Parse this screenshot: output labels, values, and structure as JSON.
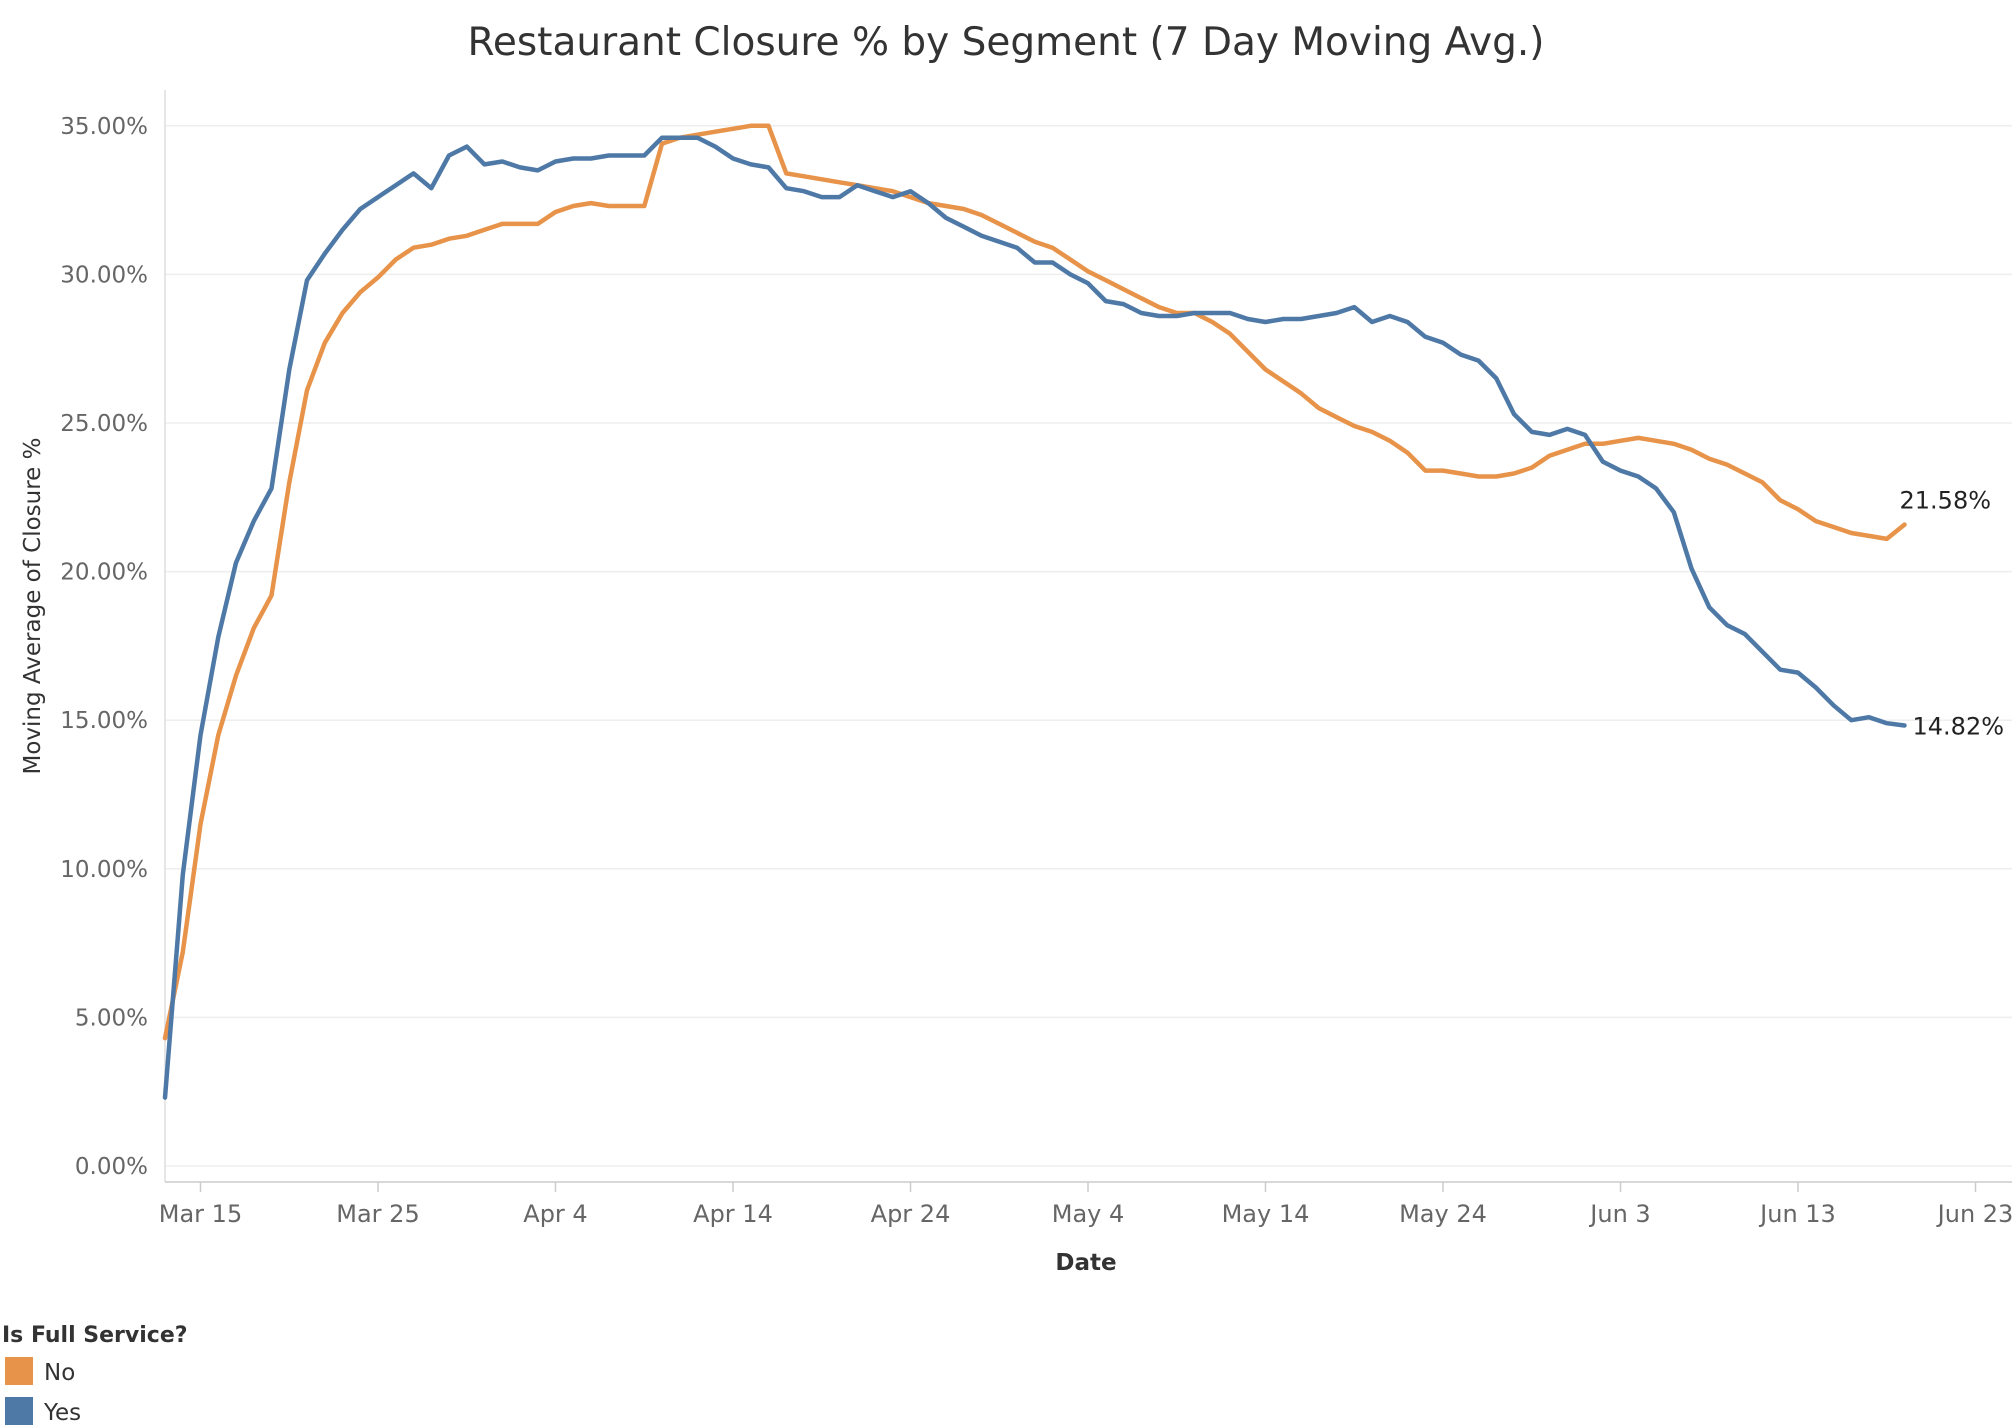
{
  "chart_data": {
    "type": "line",
    "title": "Restaurant Closure % by Segment (7 Day Moving Avg.)",
    "xlabel": "Date",
    "ylabel": "Moving Average of Closure %",
    "x_start_label": "Mar 13",
    "x_ticks": [
      "Mar 15",
      "Mar 25",
      "Apr 4",
      "Apr 14",
      "Apr 24",
      "May 4",
      "May 14",
      "May 24",
      "Jun 3",
      "Jun 13",
      "Jun 23"
    ],
    "x_tick_day_index": [
      2,
      12,
      22,
      32,
      42,
      52,
      62,
      72,
      82,
      92,
      102
    ],
    "x_range_day_index": [
      0,
      104.5
    ],
    "y_ticks": [
      "0.00%",
      "5.00%",
      "10.00%",
      "15.00%",
      "20.00%",
      "25.00%",
      "30.00%",
      "35.00%"
    ],
    "y_tick_values": [
      0,
      5,
      10,
      15,
      20,
      25,
      30,
      35
    ],
    "ylim": [
      0,
      37
    ],
    "grid": true,
    "legend": {
      "title": "Is Full Service?",
      "placement": "bottom-left"
    },
    "series": [
      {
        "name": "No",
        "color": "#E8934A",
        "end_label": "21.58%",
        "values": [
          4.3,
          7.2,
          11.5,
          14.5,
          16.5,
          18.1,
          19.2,
          23.0,
          26.1,
          27.7,
          28.7,
          29.4,
          29.9,
          30.5,
          30.9,
          31.0,
          31.2,
          31.3,
          31.5,
          31.7,
          31.7,
          31.7,
          32.1,
          32.3,
          32.4,
          32.3,
          32.3,
          32.3,
          34.4,
          34.6,
          34.7,
          34.8,
          34.9,
          35.0,
          35.0,
          33.4,
          33.3,
          33.2,
          33.1,
          33.0,
          32.9,
          32.8,
          32.6,
          32.4,
          32.3,
          32.2,
          32.0,
          31.7,
          31.4,
          31.1,
          30.9,
          30.5,
          30.1,
          29.8,
          29.5,
          29.2,
          28.9,
          28.7,
          28.7,
          28.4,
          28.0,
          27.4,
          26.8,
          26.4,
          26.0,
          25.5,
          25.2,
          24.9,
          24.7,
          24.4,
          24.0,
          23.4,
          23.4,
          23.3,
          23.2,
          23.2,
          23.3,
          23.5,
          23.9,
          24.1,
          24.3,
          24.3,
          24.4,
          24.5,
          24.4,
          24.3,
          24.1,
          23.8,
          23.6,
          23.3,
          23.0,
          22.4,
          22.1,
          21.7,
          21.5,
          21.3,
          21.2,
          21.1,
          21.58
        ]
      },
      {
        "name": "Yes",
        "color": "#4E79A7",
        "end_label": "14.82%",
        "values": [
          2.3,
          9.8,
          14.5,
          17.8,
          20.3,
          21.7,
          22.8,
          26.8,
          29.8,
          30.7,
          31.5,
          32.2,
          32.6,
          33.0,
          33.4,
          32.9,
          34.0,
          34.3,
          33.7,
          33.8,
          33.6,
          33.5,
          33.8,
          33.9,
          33.9,
          34.0,
          34.0,
          34.0,
          34.6,
          34.6,
          34.6,
          34.3,
          33.9,
          33.7,
          33.6,
          32.9,
          32.8,
          32.6,
          32.6,
          33.0,
          32.8,
          32.6,
          32.8,
          32.4,
          31.9,
          31.6,
          31.3,
          31.1,
          30.9,
          30.4,
          30.4,
          30.0,
          29.7,
          29.1,
          29.0,
          28.7,
          28.6,
          28.6,
          28.7,
          28.7,
          28.7,
          28.5,
          28.4,
          28.5,
          28.5,
          28.6,
          28.7,
          28.9,
          28.4,
          28.6,
          28.4,
          27.9,
          27.7,
          27.3,
          27.1,
          26.5,
          25.3,
          24.7,
          24.6,
          24.8,
          24.6,
          23.7,
          23.4,
          23.2,
          22.8,
          22.0,
          20.1,
          18.8,
          18.2,
          17.9,
          17.3,
          16.7,
          16.6,
          16.1,
          15.5,
          15.0,
          15.1,
          14.9,
          14.82
        ]
      }
    ]
  }
}
